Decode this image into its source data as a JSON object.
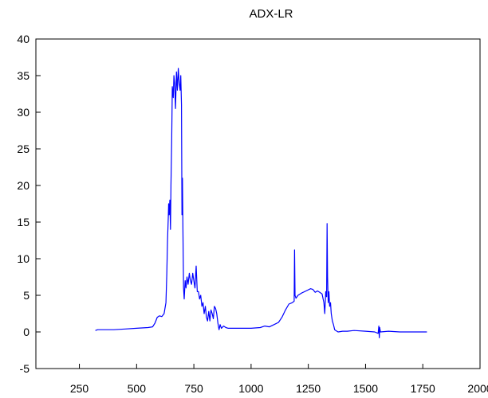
{
  "chart_data": {
    "type": "line",
    "title": "ADX-LR",
    "xlabel": "",
    "ylabel": "",
    "xlim": [
      60,
      2000
    ],
    "ylim": [
      -5,
      40
    ],
    "x_ticks": [
      250,
      500,
      750,
      1000,
      1250,
      1500,
      1750,
      2000
    ],
    "y_ticks": [
      -5,
      0,
      5,
      10,
      15,
      20,
      25,
      30,
      35,
      40
    ],
    "grid": false,
    "series": [
      {
        "color": "#0000ff",
        "points": [
          [
            320,
            0.2
          ],
          [
            330,
            0.3
          ],
          [
            360,
            0.3
          ],
          [
            400,
            0.3
          ],
          [
            450,
            0.4
          ],
          [
            500,
            0.5
          ],
          [
            550,
            0.6
          ],
          [
            570,
            0.7
          ],
          [
            580,
            1.2
          ],
          [
            590,
            2.0
          ],
          [
            600,
            2.2
          ],
          [
            610,
            2.1
          ],
          [
            620,
            2.5
          ],
          [
            628,
            4.0
          ],
          [
            632,
            8.0
          ],
          [
            635,
            12.5
          ],
          [
            638,
            15.5
          ],
          [
            640,
            17.5
          ],
          [
            642,
            16.0
          ],
          [
            645,
            18.0
          ],
          [
            648,
            14.0
          ],
          [
            650,
            20.0
          ],
          [
            653,
            26.0
          ],
          [
            656,
            33.5
          ],
          [
            660,
            32.0
          ],
          [
            663,
            35.0
          ],
          [
            666,
            34.0
          ],
          [
            670,
            30.5
          ],
          [
            674,
            35.5
          ],
          [
            678,
            33.0
          ],
          [
            682,
            36.0
          ],
          [
            686,
            34.0
          ],
          [
            690,
            33.0
          ],
          [
            693,
            35.0
          ],
          [
            696,
            31.0
          ],
          [
            698,
            16.0
          ],
          [
            700,
            21.0
          ],
          [
            703,
            12.0
          ],
          [
            705,
            6.0
          ],
          [
            708,
            4.5
          ],
          [
            712,
            7.0
          ],
          [
            716,
            6.0
          ],
          [
            720,
            7.5
          ],
          [
            725,
            6.5
          ],
          [
            730,
            8.0
          ],
          [
            735,
            7.0
          ],
          [
            740,
            6.5
          ],
          [
            745,
            8.0
          ],
          [
            750,
            7.0
          ],
          [
            755,
            6.0
          ],
          [
            760,
            9.0
          ],
          [
            765,
            5.5
          ],
          [
            770,
            5.5
          ],
          [
            775,
            4.5
          ],
          [
            780,
            5.0
          ],
          [
            785,
            3.5
          ],
          [
            790,
            4.0
          ],
          [
            795,
            2.5
          ],
          [
            800,
            3.5
          ],
          [
            805,
            2.0
          ],
          [
            810,
            1.5
          ],
          [
            815,
            2.8
          ],
          [
            820,
            1.5
          ],
          [
            825,
            3.0
          ],
          [
            830,
            2.5
          ],
          [
            835,
            1.8
          ],
          [
            840,
            3.5
          ],
          [
            845,
            3.2
          ],
          [
            850,
            2.5
          ],
          [
            855,
            1.2
          ],
          [
            860,
            0.3
          ],
          [
            865,
            1.0
          ],
          [
            870,
            0.5
          ],
          [
            880,
            0.8
          ],
          [
            890,
            0.6
          ],
          [
            900,
            0.5
          ],
          [
            920,
            0.5
          ],
          [
            950,
            0.5
          ],
          [
            1000,
            0.5
          ],
          [
            1040,
            0.6
          ],
          [
            1060,
            0.8
          ],
          [
            1080,
            0.7
          ],
          [
            1100,
            1.0
          ],
          [
            1120,
            1.3
          ],
          [
            1135,
            2.0
          ],
          [
            1150,
            3.0
          ],
          [
            1165,
            3.8
          ],
          [
            1180,
            4.0
          ],
          [
            1188,
            4.2
          ],
          [
            1190,
            11.2
          ],
          [
            1192,
            5.0
          ],
          [
            1196,
            4.6
          ],
          [
            1205,
            5.0
          ],
          [
            1220,
            5.3
          ],
          [
            1240,
            5.6
          ],
          [
            1260,
            5.9
          ],
          [
            1270,
            5.8
          ],
          [
            1280,
            5.4
          ],
          [
            1290,
            5.6
          ],
          [
            1300,
            5.4
          ],
          [
            1310,
            5.2
          ],
          [
            1318,
            4.0
          ],
          [
            1322,
            2.5
          ],
          [
            1326,
            5.5
          ],
          [
            1330,
            4.8
          ],
          [
            1332,
            14.8
          ],
          [
            1334,
            7.5
          ],
          [
            1337,
            4.0
          ],
          [
            1340,
            5.5
          ],
          [
            1343,
            3.5
          ],
          [
            1347,
            4.0
          ],
          [
            1350,
            2.5
          ],
          [
            1355,
            1.5
          ],
          [
            1360,
            1.0
          ],
          [
            1365,
            0.3
          ],
          [
            1370,
            0.2
          ],
          [
            1380,
            0.0
          ],
          [
            1400,
            0.1
          ],
          [
            1420,
            0.1
          ],
          [
            1450,
            0.2
          ],
          [
            1500,
            0.1
          ],
          [
            1540,
            0.0
          ],
          [
            1555,
            -0.2
          ],
          [
            1558,
            0.8
          ],
          [
            1560,
            -0.8
          ],
          [
            1562,
            0.6
          ],
          [
            1565,
            0.0
          ],
          [
            1600,
            0.1
          ],
          [
            1650,
            0.0
          ],
          [
            1700,
            0.0
          ],
          [
            1768,
            0.0
          ]
        ]
      }
    ]
  }
}
